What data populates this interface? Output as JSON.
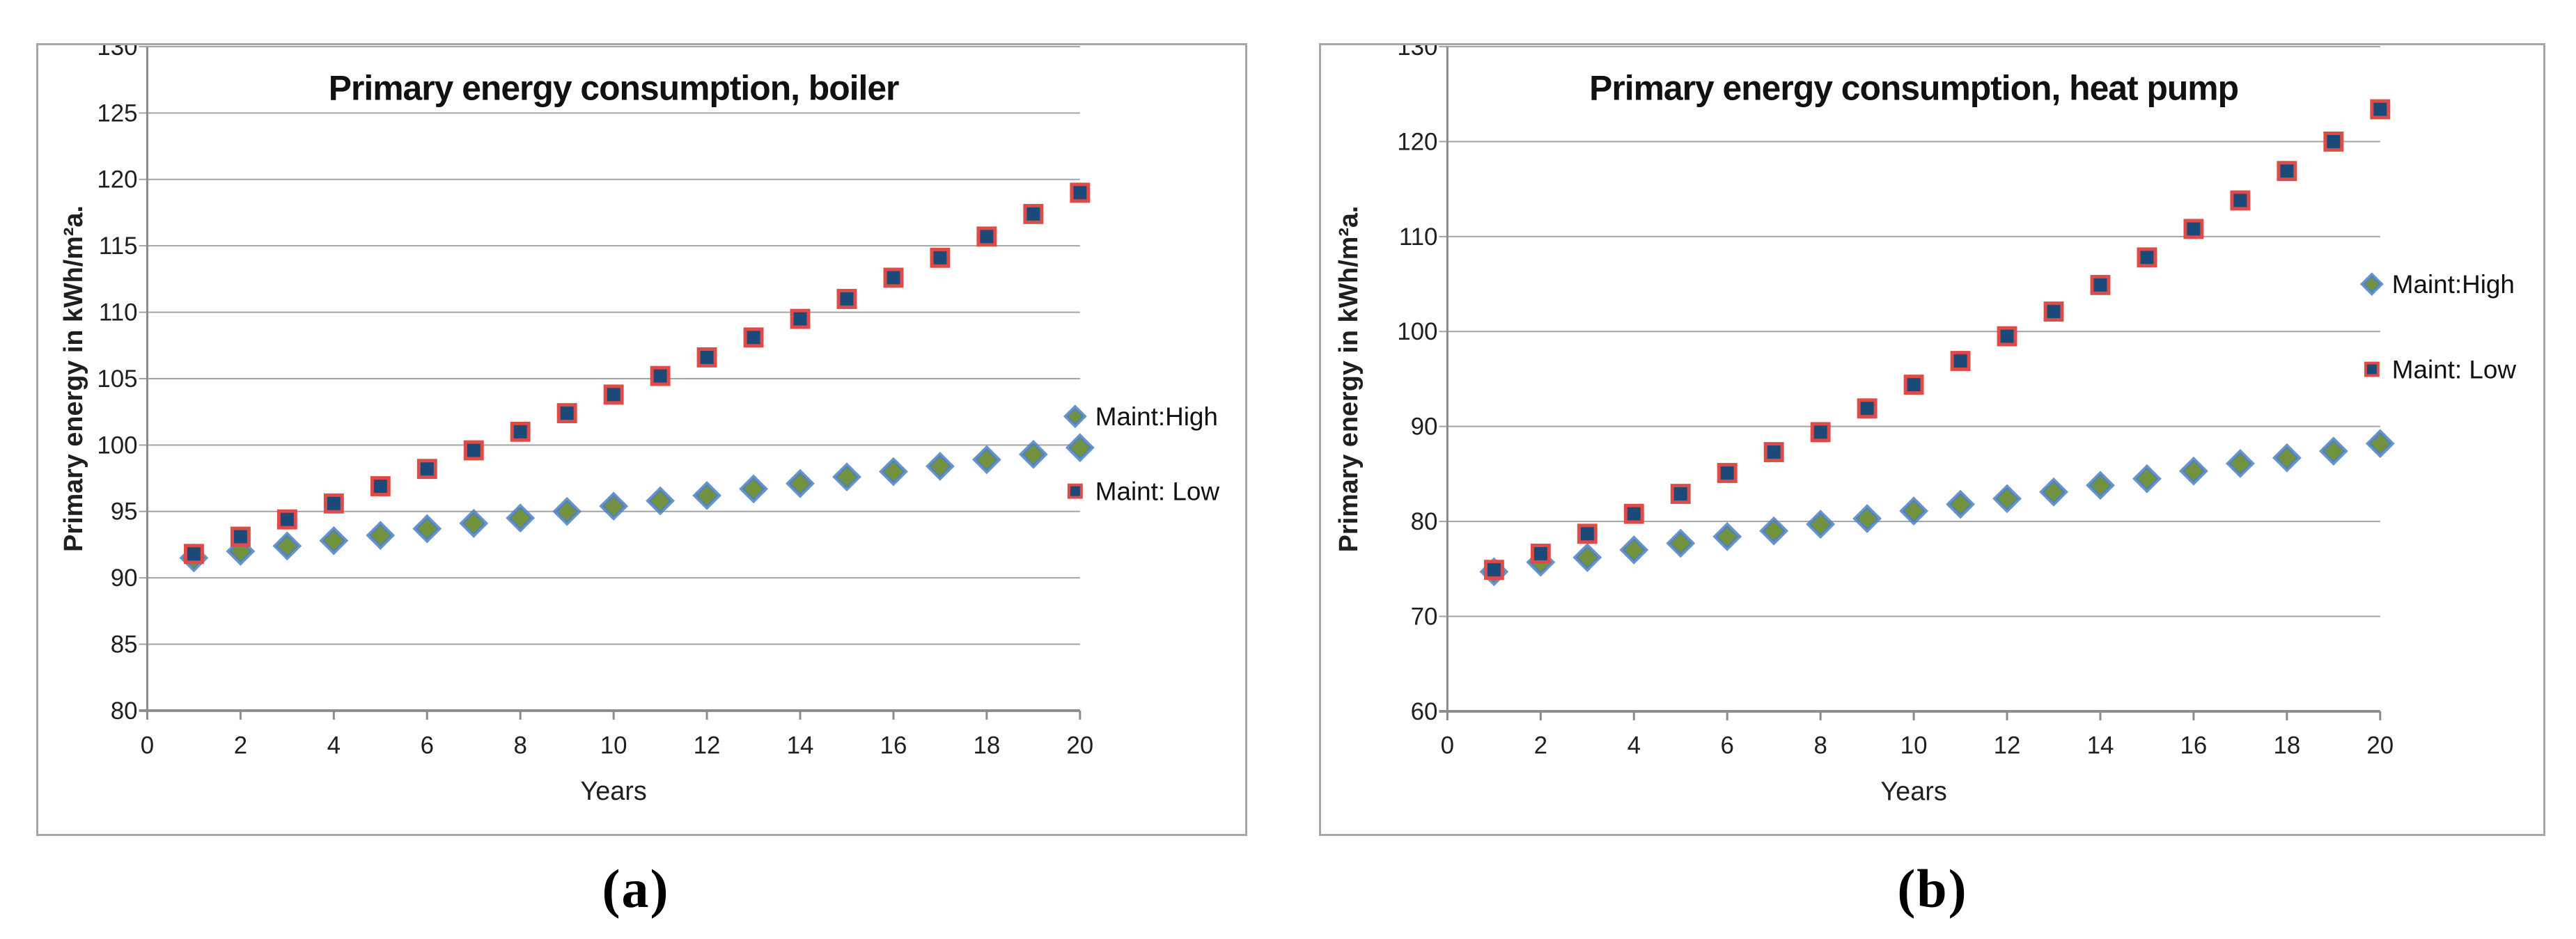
{
  "figure": {
    "caption_a": "(a)",
    "caption_b": "(b)"
  },
  "colors": {
    "maint_high_fill": "#72923e",
    "maint_high_edge": "#4f81bd",
    "maint_low_fill": "#1b4a78",
    "maint_low_edge": "#df4b46",
    "gridline": "#a3a3a3",
    "axis_line": "#8c8c8c",
    "panel_border": "#a6a6a6",
    "text": "#1f1f1f"
  },
  "chart_data": [
    {
      "id": "boiler",
      "type": "scatter",
      "title": "Primary energy consumption, boiler",
      "xlabel": "Years",
      "ylabel": "Primary energy  in kWh/m²a.",
      "xlim": [
        0,
        20
      ],
      "ylim": [
        80,
        130
      ],
      "xticks": [
        0,
        2,
        4,
        6,
        8,
        10,
        12,
        14,
        16,
        18,
        20
      ],
      "yticks": [
        80,
        85,
        90,
        95,
        100,
        105,
        110,
        115,
        120,
        125,
        130
      ],
      "grid": "horizontal",
      "legend_position": "right-middle",
      "x": [
        1,
        2,
        3,
        4,
        5,
        6,
        7,
        8,
        9,
        10,
        11,
        12,
        13,
        14,
        15,
        16,
        17,
        18,
        19,
        20
      ],
      "series": [
        {
          "name": "Maint:High",
          "marker": "diamond",
          "values": [
            91.5,
            92.0,
            92.4,
            92.8,
            93.2,
            93.7,
            94.1,
            94.5,
            95.0,
            95.4,
            95.8,
            96.2,
            96.7,
            97.1,
            97.6,
            98.0,
            98.4,
            98.9,
            99.3,
            99.8
          ]
        },
        {
          "name": "Maint: Low",
          "marker": "square",
          "values": [
            91.8,
            93.1,
            94.4,
            95.6,
            96.9,
            98.2,
            99.6,
            101.0,
            102.4,
            103.8,
            105.2,
            106.6,
            108.1,
            109.5,
            111.0,
            112.6,
            114.1,
            115.7,
            117.4,
            119.0
          ]
        }
      ]
    },
    {
      "id": "heat-pump",
      "type": "scatter",
      "title": "Primary energy consumption, heat pump",
      "xlabel": "Years",
      "ylabel": "Primary energy  in kWh/m²a.",
      "xlim": [
        0,
        20
      ],
      "ylim": [
        60,
        130
      ],
      "xticks": [
        0,
        2,
        4,
        6,
        8,
        10,
        12,
        14,
        16,
        18,
        20
      ],
      "yticks": [
        60,
        70,
        80,
        90,
        100,
        110,
        120,
        130
      ],
      "grid": "horizontal",
      "legend_position": "right-upper",
      "x": [
        1,
        2,
        3,
        4,
        5,
        6,
        7,
        8,
        9,
        10,
        11,
        12,
        13,
        14,
        15,
        16,
        17,
        18,
        19,
        20
      ],
      "series": [
        {
          "name": "Maint:High",
          "marker": "diamond",
          "values": [
            74.7,
            75.7,
            76.2,
            77.0,
            77.7,
            78.4,
            79.0,
            79.7,
            80.3,
            81.1,
            81.8,
            82.4,
            83.1,
            83.8,
            84.5,
            85.3,
            86.1,
            86.7,
            87.4,
            88.2
          ]
        },
        {
          "name": "Maint: Low",
          "marker": "square",
          "values": [
            74.9,
            76.6,
            78.7,
            80.8,
            82.9,
            85.1,
            87.3,
            89.4,
            91.9,
            94.4,
            96.9,
            99.5,
            102.1,
            104.9,
            107.8,
            110.8,
            113.8,
            116.9,
            120.0,
            123.4
          ]
        }
      ]
    }
  ]
}
